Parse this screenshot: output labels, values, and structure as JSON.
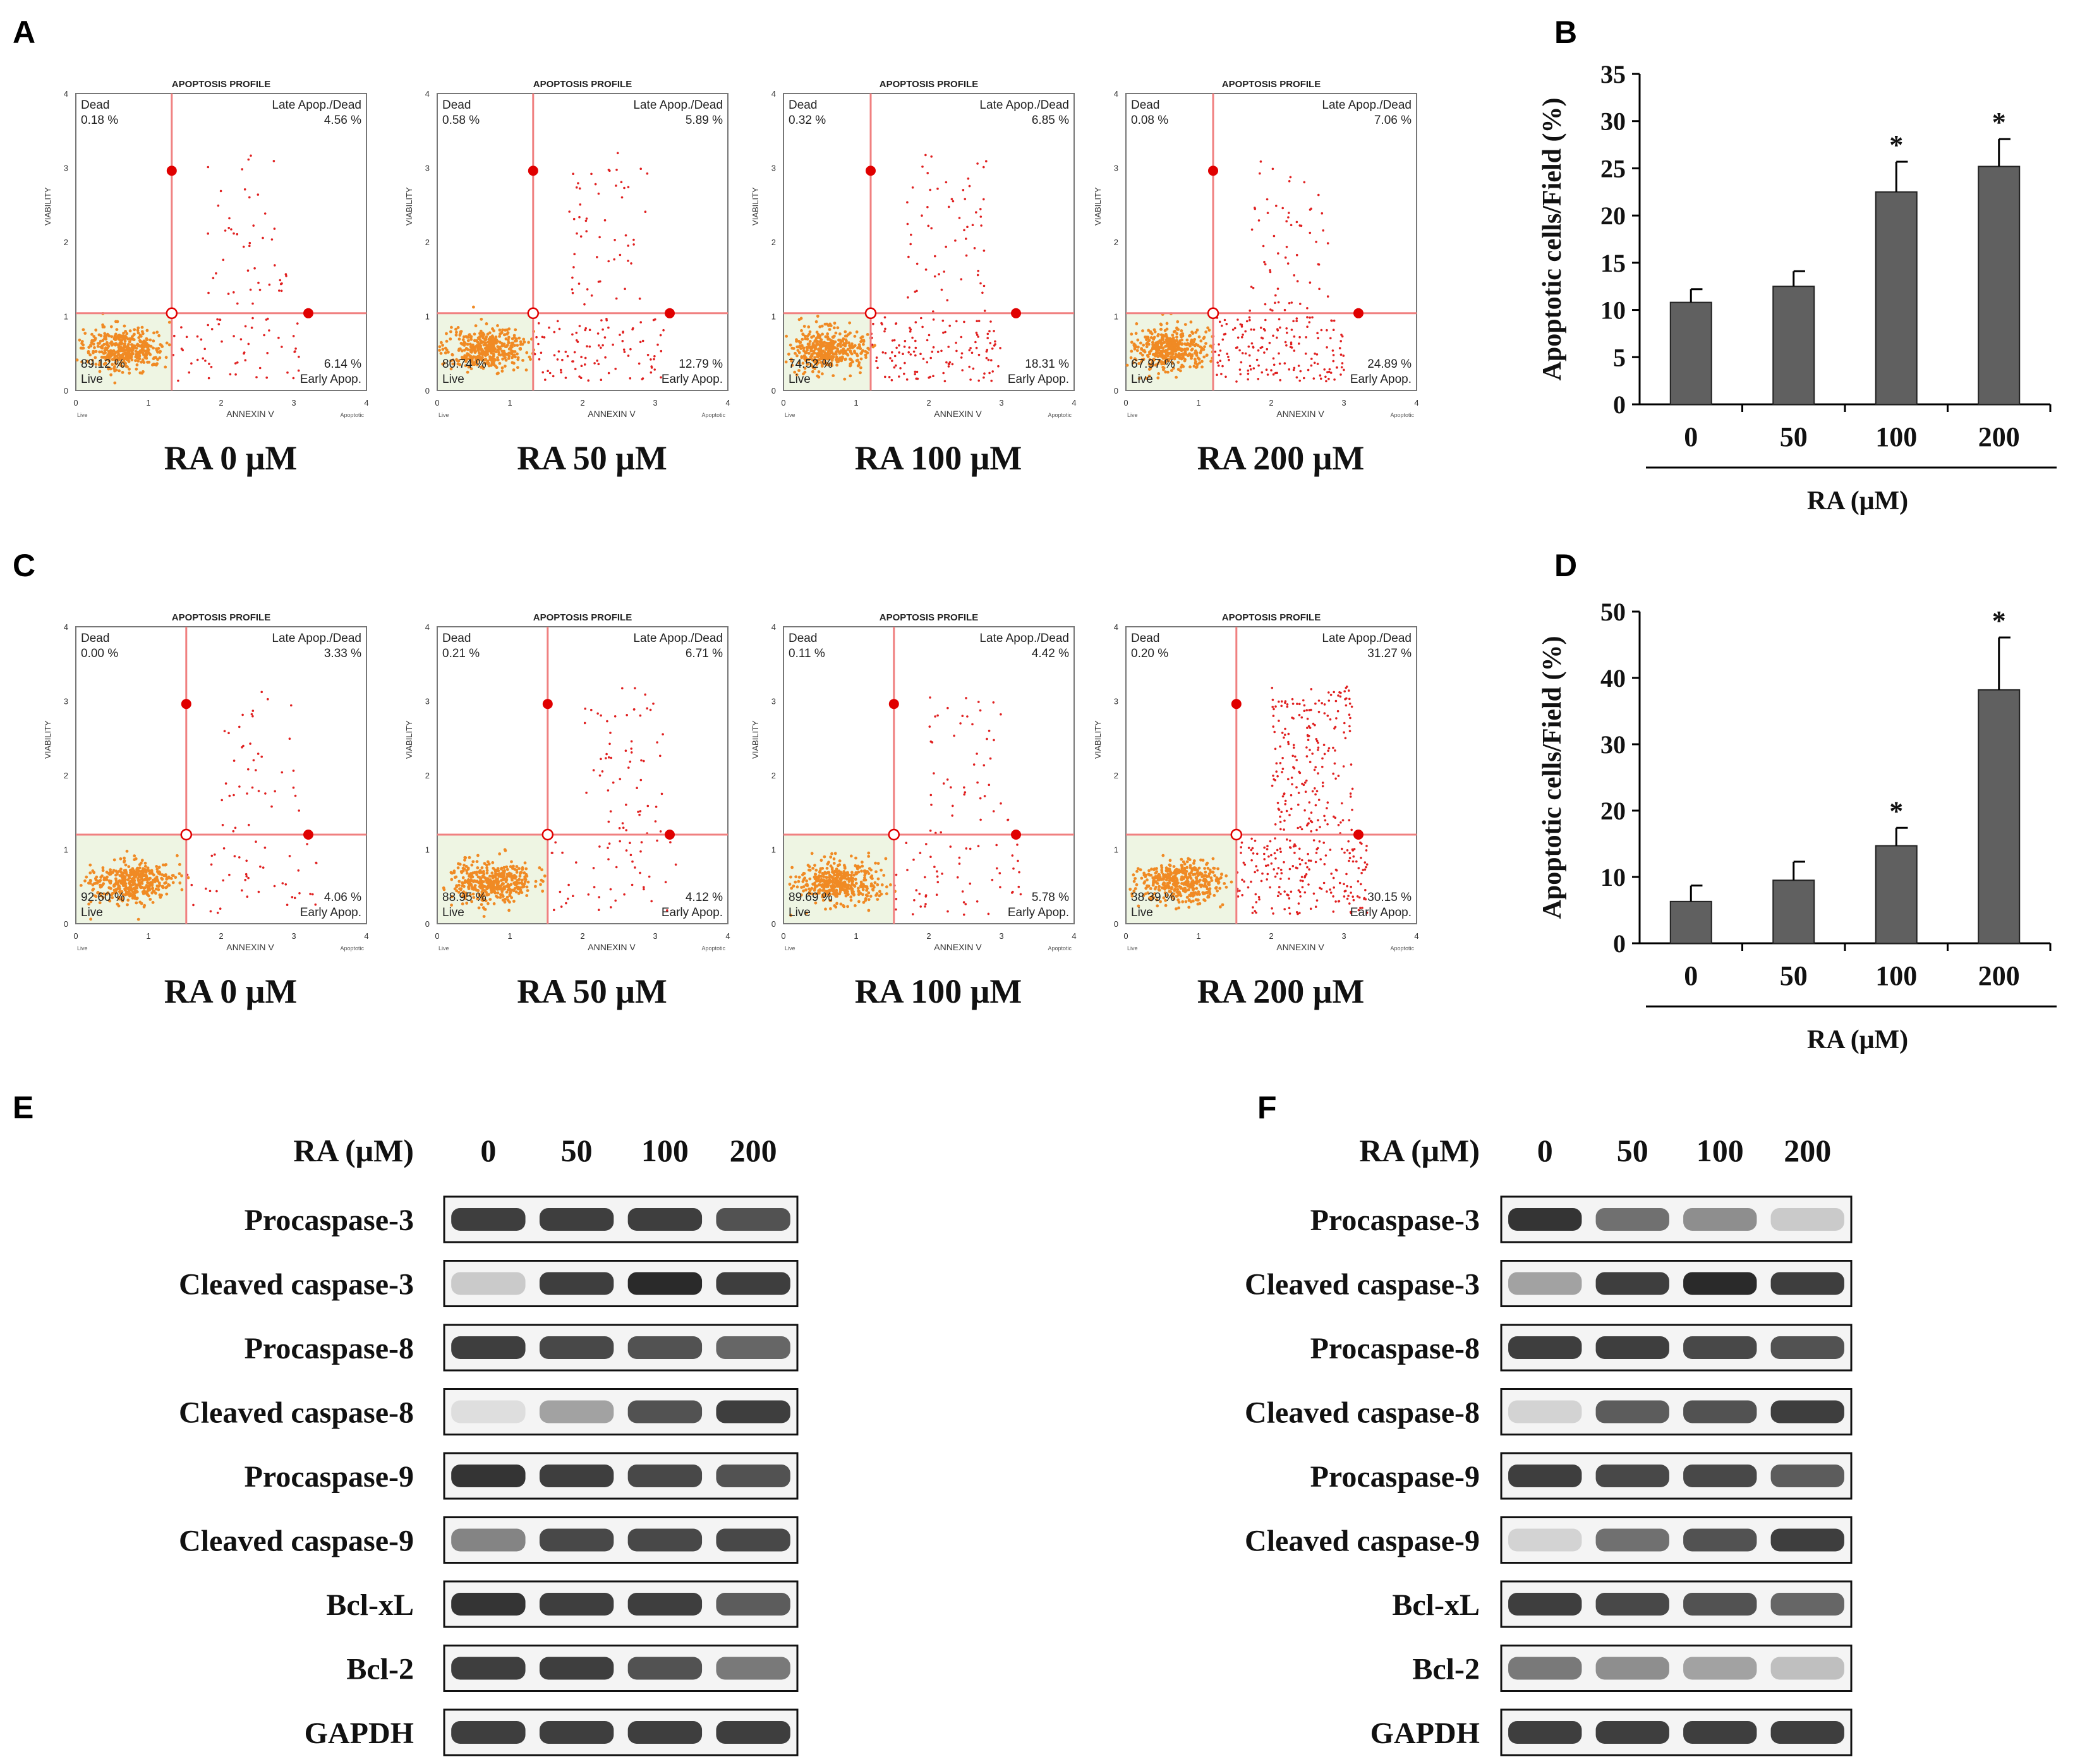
{
  "panels": {
    "A": "A",
    "B": "B",
    "C": "C",
    "D": "D",
    "E": "E",
    "F": "F"
  },
  "flow_common": {
    "profile_title": "APOPTOSIS PROFILE",
    "dead": "Dead",
    "late": "Late Apop./Dead",
    "live": "Live",
    "early": "Early Apop.",
    "ylabel": "VIABILITY",
    "xlabel": "ANNEXIN V",
    "xaxis_left": "Live",
    "xaxis_right": "Apoptotic",
    "yticks": [
      "0",
      "1",
      "2",
      "3",
      "4"
    ],
    "xticks": [
      "0",
      "1",
      "2",
      "3",
      "4"
    ]
  },
  "flow_rowA": [
    {
      "caption": "RA 0 μM",
      "dead": "0.18 %",
      "late": "4.56 %",
      "live": "89.12 %",
      "early": "6.14 %"
    },
    {
      "caption": "RA 50 μM",
      "dead": "0.58 %",
      "late": "5.89 %",
      "live": "80.74 %",
      "early": "12.79 %"
    },
    {
      "caption": "RA 100 μM",
      "dead": "0.32 %",
      "late": "6.85 %",
      "live": "74.52 %",
      "early": "18.31 %"
    },
    {
      "caption": "RA 200 μM",
      "dead": "0.08 %",
      "late": "7.06 %",
      "live": "67.97 %",
      "early": "24.89 %"
    }
  ],
  "flow_rowC": [
    {
      "caption": "RA 0 μM",
      "dead": "0.00 %",
      "late": "3.33 %",
      "live": "92.60 %",
      "early": "4.06 %"
    },
    {
      "caption": "RA 50 μM",
      "dead": "0.21 %",
      "late": "6.71 %",
      "live": "88.95 %",
      "early": "4.12 %"
    },
    {
      "caption": "RA 100 μM",
      "dead": "0.11 %",
      "late": "4.42 %",
      "live": "89.69 %",
      "early": "5.78 %"
    },
    {
      "caption": "RA 200 μM",
      "dead": "0.20 %",
      "late": "31.27 %",
      "live": "38.39 %",
      "early": "30.15 %"
    }
  ],
  "chart_data": [
    {
      "type": "bar",
      "panel": "B",
      "categories": [
        "0",
        "50",
        "100",
        "200"
      ],
      "values": [
        10.8,
        12.5,
        22.5,
        25.2
      ],
      "errors": [
        1.4,
        1.6,
        3.2,
        2.9
      ],
      "significant": [
        false,
        false,
        true,
        true
      ],
      "ylabel": "Apoptotic  cells/Field (%)",
      "xlabel": "RA  (μM)",
      "ylim": [
        0,
        35
      ],
      "yticks": [
        0,
        5,
        10,
        15,
        20,
        25,
        30,
        35
      ],
      "star": "*"
    },
    {
      "type": "bar",
      "panel": "D",
      "categories": [
        "0",
        "50",
        "100",
        "200"
      ],
      "values": [
        6.3,
        9.5,
        14.7,
        38.2
      ],
      "errors": [
        2.4,
        2.8,
        2.7,
        7.9
      ],
      "significant": [
        false,
        false,
        true,
        true
      ],
      "ylabel": "Apoptotic  cells/Field (%)",
      "xlabel": "RA  (μM)",
      "ylim": [
        0,
        50
      ],
      "yticks": [
        0,
        10,
        20,
        30,
        40,
        50
      ],
      "star": "*"
    }
  ],
  "western": {
    "header_label": "RA (μM)",
    "doses": [
      "0",
      "50",
      "100",
      "200"
    ],
    "rows": [
      "Procaspase-3",
      "Cleaved caspase-3",
      "Procaspase-8",
      "Cleaved caspase-8",
      "Procaspase-9",
      "Cleaved caspase-9",
      "Bcl-xL",
      "Bcl-2",
      "GAPDH"
    ],
    "E_intensity": [
      [
        0.85,
        0.85,
        0.85,
        0.75
      ],
      [
        0.15,
        0.85,
        0.95,
        0.85
      ],
      [
        0.85,
        0.8,
        0.75,
        0.65
      ],
      [
        0.05,
        0.35,
        0.75,
        0.85
      ],
      [
        0.9,
        0.85,
        0.8,
        0.75
      ],
      [
        0.5,
        0.8,
        0.8,
        0.8
      ],
      [
        0.9,
        0.85,
        0.85,
        0.7
      ],
      [
        0.85,
        0.85,
        0.75,
        0.55
      ],
      [
        0.85,
        0.85,
        0.85,
        0.85
      ]
    ],
    "F_intensity": [
      [
        0.9,
        0.6,
        0.45,
        0.15
      ],
      [
        0.35,
        0.85,
        0.95,
        0.85
      ],
      [
        0.85,
        0.85,
        0.8,
        0.75
      ],
      [
        0.1,
        0.7,
        0.75,
        0.85
      ],
      [
        0.85,
        0.8,
        0.8,
        0.7
      ],
      [
        0.1,
        0.6,
        0.75,
        0.85
      ],
      [
        0.85,
        0.8,
        0.75,
        0.65
      ],
      [
        0.55,
        0.45,
        0.35,
        0.2
      ],
      [
        0.85,
        0.85,
        0.85,
        0.85
      ]
    ]
  }
}
